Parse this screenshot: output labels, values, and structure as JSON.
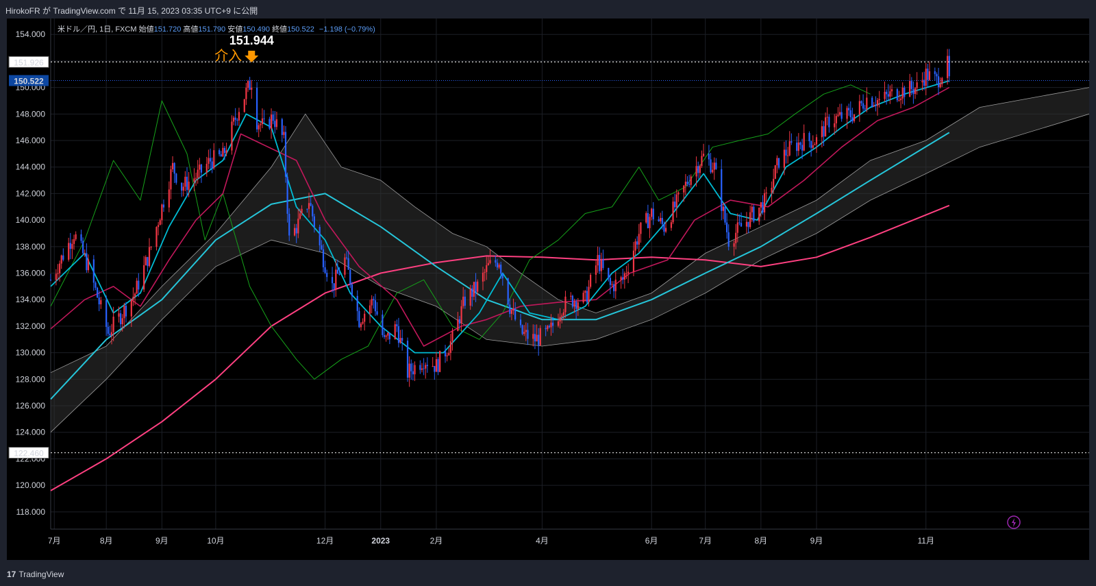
{
  "header": {
    "publish_line": "HirokoFR が TradingView.com で 11月 15, 2023 03:35 UTC+9 に公開"
  },
  "legend": {
    "symbol": "米ドル／円, 1日, FXCM",
    "open_label": "始値",
    "open": "151.720",
    "high_label": "高値",
    "high": "151.790",
    "low_label": "安値",
    "low": "150.490",
    "close_label": "終値",
    "close": "150.522",
    "change": "−1.198 (−0.79%)"
  },
  "footer": {
    "brand": "TradingView",
    "brand_mark": "17"
  },
  "colors": {
    "background": "#000000",
    "up": "#f23645",
    "down": "#2962ff",
    "tenkan": "#00bcd4",
    "kijun": "#c2185b",
    "chikou": "#16a31a",
    "ma_medium": "#26c6da",
    "ma_long": "#ff4081",
    "cloud": "#333333",
    "annotation": "#ff9800",
    "price_tag": "#0d47a1"
  },
  "chart_data": {
    "type": "candlestick",
    "yaxis": {
      "ticks": [
        "118.000",
        "120.000",
        "122.000",
        "124.000",
        "126.000",
        "128.000",
        "130.000",
        "132.000",
        "134.000",
        "136.000",
        "138.000",
        "140.000",
        "142.000",
        "144.000",
        "146.000",
        "148.000",
        "150.000",
        "152.000",
        "154.000"
      ],
      "range": [
        116.7,
        155.2
      ]
    },
    "xaxis": {
      "ticks": [
        "7月",
        "8月",
        "9月",
        "10月",
        "12月",
        "2023",
        "2月",
        "4月",
        "6月",
        "7月",
        "8月",
        "9月",
        "11月"
      ],
      "range": [
        "2022-07-01",
        "2024-01-31"
      ]
    },
    "horizontal_lines": [
      {
        "label": "151.926",
        "value": 151.926,
        "style": "dotted-white"
      },
      {
        "label": "122.460",
        "value": 122.46,
        "style": "dotted-white"
      },
      {
        "label": "150.522",
        "value": 150.522,
        "style": "current-price"
      }
    ],
    "annotations": [
      {
        "text": "151.944",
        "date": "2022-10-21",
        "value": 151.944
      },
      {
        "text": "介入",
        "date": "2022-10-21",
        "value": 151.944,
        "marker": "down-arrow"
      }
    ],
    "price_path": [
      [
        "2022-07-01",
        135.5
      ],
      [
        "2022-07-14",
        139.0
      ],
      [
        "2022-07-22",
        136.5
      ],
      [
        "2022-08-02",
        131.5
      ],
      [
        "2022-08-10",
        133.0
      ],
      [
        "2022-08-17",
        134.5
      ],
      [
        "2022-08-25",
        137.5
      ],
      [
        "2022-09-07",
        144.0
      ],
      [
        "2022-09-12",
        142.5
      ],
      [
        "2022-09-22",
        143.5
      ],
      [
        "2022-09-28",
        144.5
      ],
      [
        "2022-10-05",
        144.8
      ],
      [
        "2022-10-14",
        148.5
      ],
      [
        "2022-10-21",
        150.5
      ],
      [
        "2022-10-24",
        147.5
      ],
      [
        "2022-10-28",
        147.0
      ],
      [
        "2022-11-02",
        147.8
      ],
      [
        "2022-11-08",
        146.0
      ],
      [
        "2022-11-11",
        138.5
      ],
      [
        "2022-11-17",
        140.0
      ],
      [
        "2022-11-22",
        141.5
      ],
      [
        "2022-11-28",
        138.0
      ],
      [
        "2022-12-05",
        135.0
      ],
      [
        "2022-12-12",
        137.0
      ],
      [
        "2022-12-15",
        135.5
      ],
      [
        "2022-12-20",
        132.5
      ],
      [
        "2022-12-28",
        134.0
      ],
      [
        "2023-01-03",
        130.8
      ],
      [
        "2023-01-10",
        132.0
      ],
      [
        "2023-01-16",
        128.5
      ],
      [
        "2023-01-25",
        129.5
      ],
      [
        "2023-02-01",
        129.0
      ],
      [
        "2023-02-10",
        131.0
      ],
      [
        "2023-02-17",
        134.0
      ],
      [
        "2023-02-24",
        135.0
      ],
      [
        "2023-03-02",
        136.5
      ],
      [
        "2023-03-08",
        137.0
      ],
      [
        "2023-03-14",
        133.5
      ],
      [
        "2023-03-20",
        131.5
      ],
      [
        "2023-03-28",
        131.0
      ],
      [
        "2023-04-05",
        131.5
      ],
      [
        "2023-04-12",
        133.5
      ],
      [
        "2023-04-18",
        134.0
      ],
      [
        "2023-04-25",
        134.0
      ],
      [
        "2023-05-02",
        137.0
      ],
      [
        "2023-05-09",
        135.0
      ],
      [
        "2023-05-16",
        135.5
      ],
      [
        "2023-05-25",
        139.0
      ],
      [
        "2023-06-01",
        140.5
      ],
      [
        "2023-06-08",
        139.5
      ],
      [
        "2023-06-16",
        141.5
      ],
      [
        "2023-06-23",
        143.5
      ],
      [
        "2023-06-30",
        144.8
      ],
      [
        "2023-07-06",
        144.0
      ],
      [
        "2023-07-14",
        138.5
      ],
      [
        "2023-07-21",
        139.5
      ],
      [
        "2023-07-28",
        140.5
      ],
      [
        "2023-08-04",
        141.5
      ],
      [
        "2023-08-11",
        144.5
      ],
      [
        "2023-08-18",
        145.5
      ],
      [
        "2023-08-25",
        146.0
      ],
      [
        "2023-09-01",
        146.0
      ],
      [
        "2023-09-08",
        147.5
      ],
      [
        "2023-09-15",
        147.8
      ],
      [
        "2023-09-22",
        148.0
      ],
      [
        "2023-09-29",
        149.2
      ],
      [
        "2023-10-06",
        149.0
      ],
      [
        "2023-10-13",
        149.5
      ],
      [
        "2023-10-20",
        149.8
      ],
      [
        "2023-10-27",
        150.0
      ],
      [
        "2023-11-01",
        151.0
      ],
      [
        "2023-11-07",
        150.5
      ],
      [
        "2023-11-13",
        151.7
      ],
      [
        "2023-11-14",
        150.5
      ]
    ],
    "series": [
      {
        "name": "",
        "kind": "ma-medium",
        "points": [
          [
            "2022-07-01",
            126.5
          ],
          [
            "2022-08-01",
            131.0
          ],
          [
            "2022-09-01",
            134.0
          ],
          [
            "2022-10-01",
            138.5
          ],
          [
            "2022-11-01",
            141.2
          ],
          [
            "2022-12-01",
            142.0
          ],
          [
            "2023-01-01",
            139.5
          ],
          [
            "2023-02-01",
            136.5
          ],
          [
            "2023-03-01",
            134.0
          ],
          [
            "2023-04-01",
            132.5
          ],
          [
            "2023-05-01",
            132.5
          ],
          [
            "2023-06-01",
            134.0
          ],
          [
            "2023-07-01",
            136.0
          ],
          [
            "2023-08-01",
            138.0
          ],
          [
            "2023-09-01",
            140.5
          ],
          [
            "2023-10-01",
            143.0
          ],
          [
            "2023-11-14",
            146.6
          ]
        ]
      },
      {
        "name": "",
        "kind": "ma-long",
        "points": [
          [
            "2022-07-01",
            119.6
          ],
          [
            "2022-08-01",
            122.0
          ],
          [
            "2022-09-01",
            124.8
          ],
          [
            "2022-10-01",
            128.0
          ],
          [
            "2022-11-01",
            132.0
          ],
          [
            "2022-12-01",
            134.5
          ],
          [
            "2023-01-01",
            136.0
          ],
          [
            "2023-02-01",
            136.8
          ],
          [
            "2023-03-01",
            137.3
          ],
          [
            "2023-04-01",
            137.2
          ],
          [
            "2023-05-01",
            137.0
          ],
          [
            "2023-06-01",
            137.2
          ],
          [
            "2023-07-01",
            137.0
          ],
          [
            "2023-08-01",
            136.5
          ],
          [
            "2023-09-01",
            137.2
          ],
          [
            "2023-10-01",
            138.7
          ],
          [
            "2023-11-14",
            141.1
          ]
        ]
      },
      {
        "name": "",
        "kind": "tenkan",
        "points": [
          [
            "2022-07-01",
            135.0
          ],
          [
            "2022-07-20",
            137.5
          ],
          [
            "2022-08-05",
            133.0
          ],
          [
            "2022-08-20",
            134.5
          ],
          [
            "2022-09-05",
            139.5
          ],
          [
            "2022-09-20",
            143.0
          ],
          [
            "2022-10-05",
            144.5
          ],
          [
            "2022-10-18",
            148.0
          ],
          [
            "2022-11-01",
            147.0
          ],
          [
            "2022-11-15",
            141.0
          ],
          [
            "2022-12-01",
            138.5
          ],
          [
            "2022-12-15",
            134.5
          ],
          [
            "2023-01-01",
            132.0
          ],
          [
            "2023-01-20",
            130.0
          ],
          [
            "2023-02-05",
            130.0
          ],
          [
            "2023-02-25",
            133.0
          ],
          [
            "2023-03-10",
            136.0
          ],
          [
            "2023-03-25",
            133.0
          ],
          [
            "2023-04-10",
            132.5
          ],
          [
            "2023-04-25",
            133.5
          ],
          [
            "2023-05-10",
            136.0
          ],
          [
            "2023-05-25",
            137.5
          ],
          [
            "2023-06-10",
            140.0
          ],
          [
            "2023-06-30",
            143.5
          ],
          [
            "2023-07-15",
            140.5
          ],
          [
            "2023-07-30",
            140.0
          ],
          [
            "2023-08-15",
            144.0
          ],
          [
            "2023-09-01",
            145.5
          ],
          [
            "2023-09-15",
            147.0
          ],
          [
            "2023-10-01",
            148.5
          ],
          [
            "2023-10-20",
            149.5
          ],
          [
            "2023-11-14",
            150.5
          ]
        ]
      },
      {
        "name": "",
        "kind": "kijun",
        "points": [
          [
            "2022-07-01",
            131.8
          ],
          [
            "2022-07-20",
            134.0
          ],
          [
            "2022-08-05",
            135.0
          ],
          [
            "2022-08-20",
            133.5
          ],
          [
            "2022-09-05",
            137.0
          ],
          [
            "2022-09-20",
            140.0
          ],
          [
            "2022-10-05",
            142.0
          ],
          [
            "2022-10-15",
            146.5
          ],
          [
            "2022-11-15",
            144.5
          ],
          [
            "2022-12-01",
            140.0
          ],
          [
            "2022-12-20",
            136.5
          ],
          [
            "2023-01-10",
            134.0
          ],
          [
            "2023-01-25",
            130.5
          ],
          [
            "2023-02-15",
            132.0
          ],
          [
            "2023-03-01",
            132.5
          ],
          [
            "2023-03-20",
            133.5
          ],
          [
            "2023-04-10",
            133.8
          ],
          [
            "2023-05-01",
            134.0
          ],
          [
            "2023-05-20",
            136.0
          ],
          [
            "2023-06-10",
            137.0
          ],
          [
            "2023-06-25",
            140.0
          ],
          [
            "2023-07-15",
            141.5
          ],
          [
            "2023-08-05",
            141.0
          ],
          [
            "2023-08-25",
            143.0
          ],
          [
            "2023-09-15",
            145.5
          ],
          [
            "2023-10-05",
            147.5
          ],
          [
            "2023-10-25",
            148.5
          ],
          [
            "2023-11-14",
            150.0
          ]
        ]
      },
      {
        "name": "",
        "kind": "chikou",
        "points": [
          [
            "2022-07-01",
            133.5
          ],
          [
            "2022-07-20",
            138.5
          ],
          [
            "2022-08-05",
            144.5
          ],
          [
            "2022-08-20",
            141.5
          ],
          [
            "2022-09-01",
            149.0
          ],
          [
            "2022-09-15",
            145.0
          ],
          [
            "2022-09-25",
            138.5
          ],
          [
            "2022-10-05",
            142.0
          ],
          [
            "2022-10-20",
            135.0
          ],
          [
            "2022-11-01",
            132.0
          ],
          [
            "2022-11-15",
            129.5
          ],
          [
            "2022-11-25",
            128.0
          ],
          [
            "2022-12-10",
            129.5
          ],
          [
            "2022-12-25",
            130.5
          ],
          [
            "2023-01-10",
            134.5
          ],
          [
            "2023-01-25",
            135.5
          ],
          [
            "2023-02-10",
            132.0
          ],
          [
            "2023-02-25",
            131.0
          ],
          [
            "2023-03-10",
            133.0
          ],
          [
            "2023-03-25",
            137.0
          ],
          [
            "2023-04-10",
            138.5
          ],
          [
            "2023-04-25",
            140.5
          ],
          [
            "2023-05-10",
            141.0
          ],
          [
            "2023-05-25",
            144.0
          ],
          [
            "2023-06-05",
            141.5
          ],
          [
            "2023-06-20",
            142.5
          ],
          [
            "2023-07-05",
            145.5
          ],
          [
            "2023-07-20",
            146.0
          ],
          [
            "2023-08-05",
            146.5
          ],
          [
            "2023-08-20",
            148.0
          ],
          [
            "2023-09-05",
            149.5
          ],
          [
            "2023-09-20",
            150.2
          ],
          [
            "2023-10-01",
            149.5
          ]
        ]
      },
      {
        "name": "",
        "kind": "cloud-upper",
        "points": [
          [
            "2022-07-01",
            128.5
          ],
          [
            "2022-08-01",
            130.5
          ],
          [
            "2022-09-01",
            135.0
          ],
          [
            "2022-10-01",
            139.0
          ],
          [
            "2022-11-01",
            144.0
          ],
          [
            "2022-11-20",
            148.0
          ],
          [
            "2022-12-10",
            144.0
          ],
          [
            "2023-01-01",
            143.0
          ],
          [
            "2023-01-20",
            141.0
          ],
          [
            "2023-02-10",
            139.0
          ],
          [
            "2023-03-01",
            138.0
          ],
          [
            "2023-03-20",
            136.0
          ],
          [
            "2023-04-10",
            134.0
          ],
          [
            "2023-05-01",
            133.0
          ],
          [
            "2023-06-01",
            134.5
          ],
          [
            "2023-07-01",
            137.5
          ],
          [
            "2023-08-01",
            139.5
          ],
          [
            "2023-09-01",
            141.5
          ],
          [
            "2023-10-01",
            144.5
          ],
          [
            "2023-11-01",
            146.0
          ],
          [
            "2023-12-01",
            148.5
          ],
          [
            "2024-01-31",
            150.0
          ]
        ]
      },
      {
        "name": "",
        "kind": "cloud-lower",
        "points": [
          [
            "2022-07-01",
            124.0
          ],
          [
            "2022-08-01",
            128.0
          ],
          [
            "2022-09-01",
            132.5
          ],
          [
            "2022-10-01",
            136.5
          ],
          [
            "2022-11-01",
            138.5
          ],
          [
            "2022-12-01",
            137.5
          ],
          [
            "2023-01-01",
            135.0
          ],
          [
            "2023-02-01",
            133.5
          ],
          [
            "2023-03-01",
            131.0
          ],
          [
            "2023-04-01",
            130.5
          ],
          [
            "2023-05-01",
            131.0
          ],
          [
            "2023-06-01",
            132.5
          ],
          [
            "2023-07-01",
            134.5
          ],
          [
            "2023-08-01",
            137.0
          ],
          [
            "2023-09-01",
            139.0
          ],
          [
            "2023-10-01",
            141.5
          ],
          [
            "2023-11-01",
            143.5
          ],
          [
            "2023-12-01",
            145.5
          ],
          [
            "2024-01-31",
            148.0
          ]
        ]
      }
    ]
  }
}
